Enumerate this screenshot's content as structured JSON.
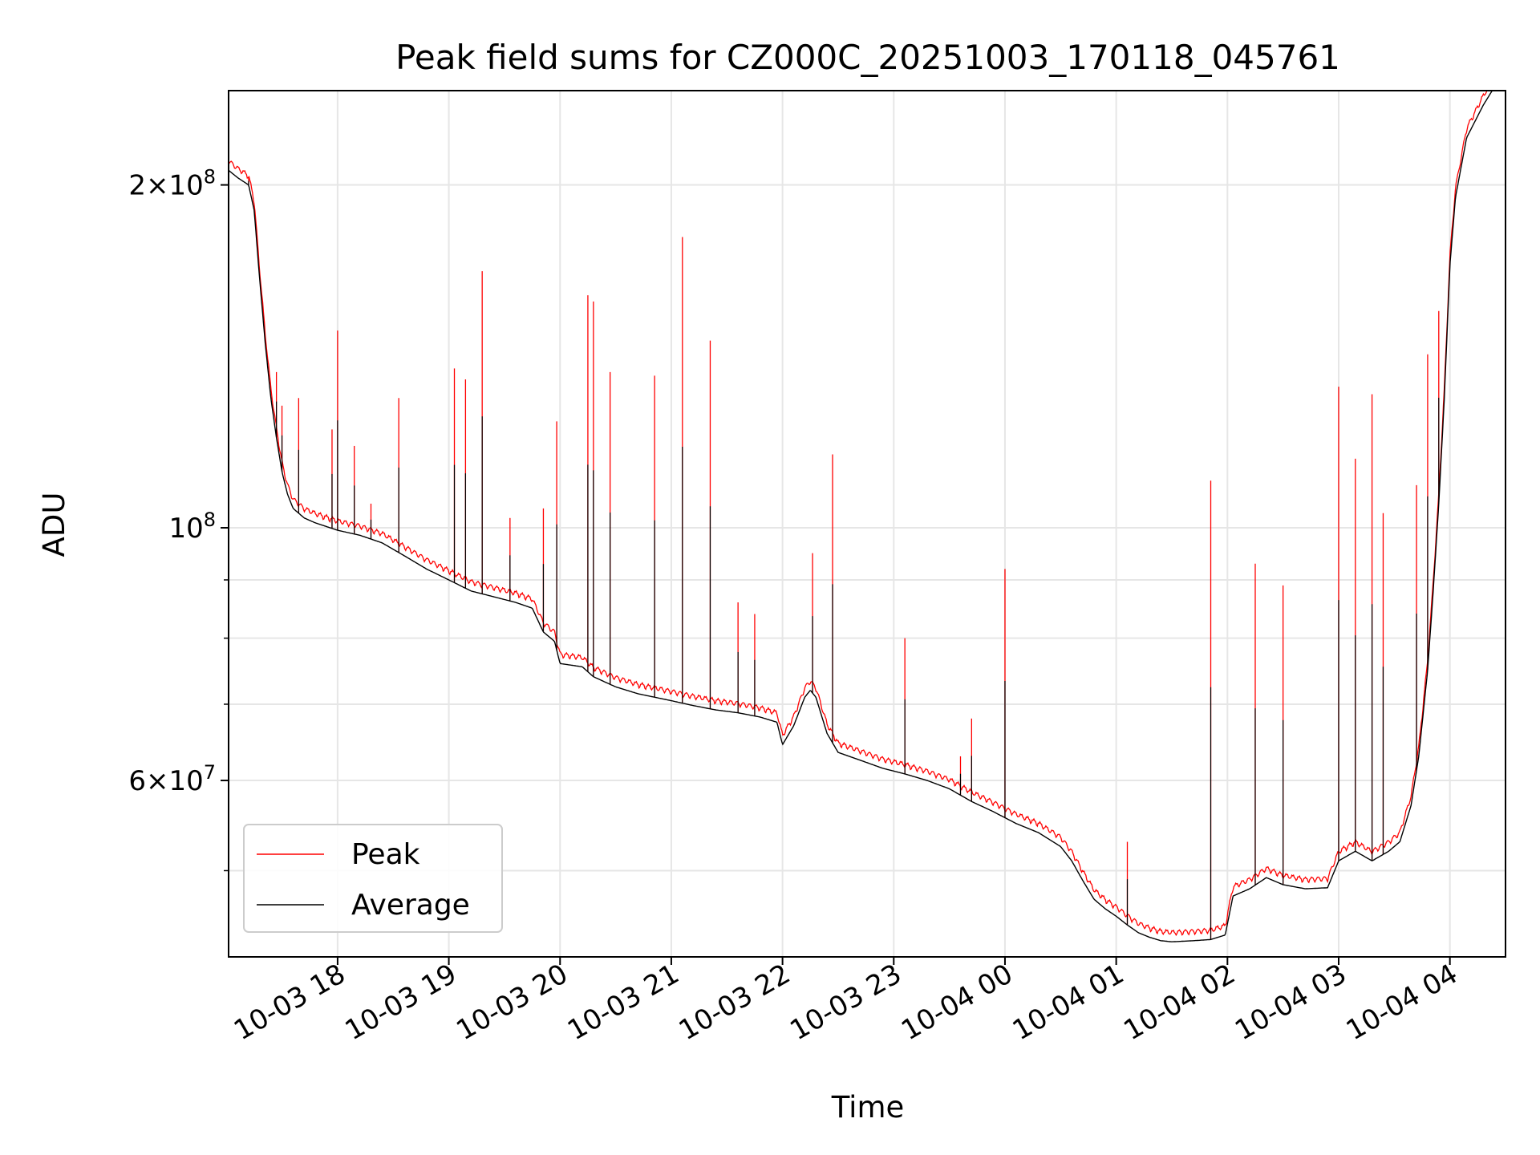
{
  "chart_data": {
    "type": "line",
    "title": "Peak field sums for CZ000C_20251003_170118_045761",
    "xlabel": "Time",
    "ylabel": "ADU",
    "yscale": "log",
    "ylim": [
      42000000,
      242000000
    ],
    "xlim_hours": [
      17.02,
      28.5
    ],
    "grid": true,
    "legend_position": "lower-left",
    "x_ticks": [
      {
        "h": 18,
        "label": "10-03 18"
      },
      {
        "h": 19,
        "label": "10-03 19"
      },
      {
        "h": 20,
        "label": "10-03 20"
      },
      {
        "h": 21,
        "label": "10-03 21"
      },
      {
        "h": 22,
        "label": "10-03 22"
      },
      {
        "h": 23,
        "label": "10-03 23"
      },
      {
        "h": 24,
        "label": "10-04 00"
      },
      {
        "h": 25,
        "label": "10-04 01"
      },
      {
        "h": 26,
        "label": "10-04 02"
      },
      {
        "h": 27,
        "label": "10-04 03"
      },
      {
        "h": 28,
        "label": "10-04 04"
      }
    ],
    "y_major_ticks": [
      {
        "v": 60000000,
        "mant": "6",
        "exp": "7"
      },
      {
        "v": 100000000,
        "mant": "",
        "exp": "8"
      },
      {
        "v": 200000000,
        "mant": "2",
        "exp": "8"
      }
    ],
    "y_minor_gridlines": [
      50000000,
      70000000,
      80000000,
      90000000
    ],
    "series": [
      {
        "name": "Average",
        "color": "#000000",
        "points": [
          [
            17.02,
            206000000
          ],
          [
            17.1,
            203000000
          ],
          [
            17.2,
            200000000
          ],
          [
            17.25,
            190000000
          ],
          [
            17.3,
            165000000
          ],
          [
            17.35,
            145000000
          ],
          [
            17.4,
            130000000
          ],
          [
            17.45,
            120000000
          ],
          [
            17.5,
            112000000
          ],
          [
            17.55,
            107000000
          ],
          [
            17.6,
            104000000
          ],
          [
            17.7,
            102000000
          ],
          [
            17.8,
            101000000
          ],
          [
            18.0,
            99500000
          ],
          [
            18.2,
            98500000
          ],
          [
            18.4,
            97000000
          ],
          [
            18.6,
            94500000
          ],
          [
            18.8,
            92000000
          ],
          [
            19.0,
            90000000
          ],
          [
            19.2,
            88000000
          ],
          [
            19.4,
            87000000
          ],
          [
            19.6,
            86000000
          ],
          [
            19.75,
            85000000
          ],
          [
            19.85,
            81000000
          ],
          [
            19.95,
            79500000
          ],
          [
            20.0,
            76000000
          ],
          [
            20.2,
            75500000
          ],
          [
            20.3,
            74000000
          ],
          [
            20.5,
            72500000
          ],
          [
            20.7,
            71500000
          ],
          [
            21.0,
            70500000
          ],
          [
            21.2,
            69800000
          ],
          [
            21.4,
            69200000
          ],
          [
            21.6,
            68800000
          ],
          [
            21.8,
            68200000
          ],
          [
            21.95,
            67500000
          ],
          [
            22.0,
            64500000
          ],
          [
            22.1,
            67000000
          ],
          [
            22.2,
            71000000
          ],
          [
            22.25,
            72000000
          ],
          [
            22.3,
            71000000
          ],
          [
            22.4,
            66000000
          ],
          [
            22.5,
            63500000
          ],
          [
            22.7,
            62500000
          ],
          [
            22.9,
            61500000
          ],
          [
            23.1,
            60800000
          ],
          [
            23.3,
            60000000
          ],
          [
            23.5,
            59000000
          ],
          [
            23.7,
            57500000
          ],
          [
            23.9,
            56300000
          ],
          [
            24.1,
            55000000
          ],
          [
            24.3,
            54000000
          ],
          [
            24.5,
            52500000
          ],
          [
            24.6,
            51000000
          ],
          [
            24.7,
            49000000
          ],
          [
            24.8,
            47200000
          ],
          [
            24.9,
            46300000
          ],
          [
            25.0,
            45600000
          ],
          [
            25.1,
            44800000
          ],
          [
            25.2,
            44100000
          ],
          [
            25.3,
            43700000
          ],
          [
            25.4,
            43400000
          ],
          [
            25.5,
            43300000
          ],
          [
            25.7,
            43400000
          ],
          [
            25.85,
            43500000
          ],
          [
            25.98,
            43900000
          ],
          [
            26.05,
            47500000
          ],
          [
            26.2,
            48200000
          ],
          [
            26.35,
            49300000
          ],
          [
            26.5,
            48600000
          ],
          [
            26.7,
            48200000
          ],
          [
            26.9,
            48300000
          ],
          [
            27.0,
            51000000
          ],
          [
            27.15,
            52000000
          ],
          [
            27.3,
            51000000
          ],
          [
            27.45,
            52000000
          ],
          [
            27.55,
            53000000
          ],
          [
            27.65,
            57000000
          ],
          [
            27.72,
            63000000
          ],
          [
            27.8,
            75000000
          ],
          [
            27.85,
            88000000
          ],
          [
            27.9,
            105000000
          ],
          [
            27.95,
            130000000
          ],
          [
            28.0,
            170000000
          ],
          [
            28.05,
            195000000
          ],
          [
            28.15,
            220000000
          ],
          [
            28.3,
            235000000
          ],
          [
            28.38,
            242000000
          ]
        ]
      },
      {
        "name": "Peak",
        "color": "#ff0000",
        "base_ratio": 1.012,
        "spikes": [
          [
            17.2,
            203000000
          ],
          [
            17.45,
            137000000
          ],
          [
            17.5,
            128000000
          ],
          [
            17.65,
            130000000
          ],
          [
            17.95,
            122000000
          ],
          [
            18.0,
            149000000
          ],
          [
            18.15,
            118000000
          ],
          [
            18.3,
            105000000
          ],
          [
            18.55,
            130000000
          ],
          [
            19.05,
            138000000
          ],
          [
            19.15,
            135000000
          ],
          [
            19.3,
            168000000
          ],
          [
            19.55,
            102000000
          ],
          [
            19.85,
            104000000
          ],
          [
            19.97,
            124000000
          ],
          [
            20.25,
            160000000
          ],
          [
            20.3,
            158000000
          ],
          [
            20.45,
            137000000
          ],
          [
            20.85,
            136000000
          ],
          [
            21.1,
            180000000
          ],
          [
            21.35,
            146000000
          ],
          [
            21.6,
            86000000
          ],
          [
            21.75,
            84000000
          ],
          [
            22.27,
            95000000
          ],
          [
            22.45,
            116000000
          ],
          [
            23.1,
            80000000
          ],
          [
            23.6,
            63000000
          ],
          [
            23.7,
            68000000
          ],
          [
            24.0,
            92000000
          ],
          [
            25.1,
            53000000
          ],
          [
            25.85,
            110000000
          ],
          [
            26.25,
            93000000
          ],
          [
            26.5,
            89000000
          ],
          [
            27.0,
            133000000
          ],
          [
            27.15,
            115000000
          ],
          [
            27.3,
            131000000
          ],
          [
            27.4,
            103000000
          ],
          [
            27.7,
            109000000
          ],
          [
            27.8,
            142000000
          ],
          [
            27.9,
            155000000
          ]
        ]
      }
    ]
  }
}
